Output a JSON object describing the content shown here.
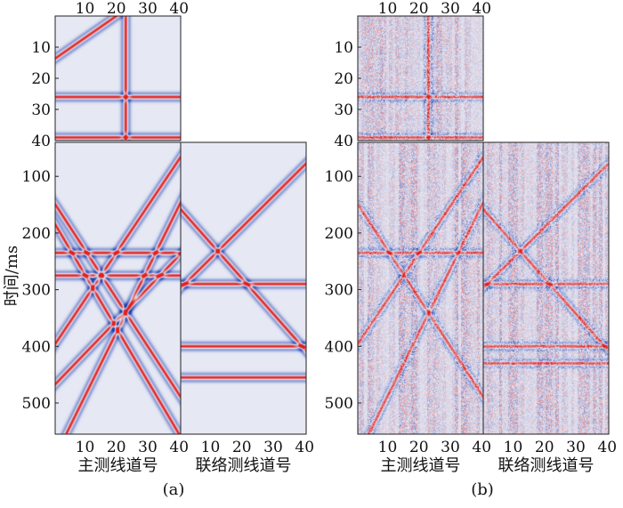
{
  "chart_data": {
    "type": "heatmap",
    "colormap": {
      "negative": "#1f3fb0",
      "zero": "#e6e9f4",
      "positive": "#e02020"
    },
    "panels": [
      {
        "name": "(a)",
        "caption": "(a)",
        "ylabel": "时间/ms",
        "main_xlabel": "主测线道号",
        "cross_xlabel": "联络测线道号",
        "x_range": [
          1,
          40
        ],
        "x_ticks": [
          10,
          20,
          30,
          40
        ],
        "top_y_range": [
          0,
          40
        ],
        "top_y_ticks": [
          10,
          20,
          30,
          40
        ],
        "main_y_range": [
          40,
          555
        ],
        "main_y_ticks": [
          100,
          200,
          300,
          400,
          500
        ],
        "noise": 0,
        "events": {
          "top": [
            {
              "kind": "line",
              "points": [
                [
                  0,
                  14
                ],
                [
                  20,
                  0
                ]
              ]
            },
            {
              "kind": "horizontal",
              "y": 26
            },
            {
              "kind": "horizontal",
              "y": 39
            },
            {
              "kind": "vertical",
              "x": 23
            }
          ],
          "main": [
            {
              "kind": "horizontal",
              "y": 235
            },
            {
              "kind": "horizontal",
              "y": 275
            },
            {
              "kind": "line",
              "points": [
                [
                  0,
                  145
                ],
                [
                  40,
                  485
                ]
              ]
            },
            {
              "kind": "line",
              "points": [
                [
                  0,
                  180
                ],
                [
                  40,
                  555
                ]
              ]
            },
            {
              "kind": "line",
              "points": [
                [
                  0,
                  400
                ],
                [
                  40,
                  70
                ]
              ]
            },
            {
              "kind": "line",
              "points": [
                [
                  0,
                  470
                ],
                [
                  40,
                  240
                ]
              ]
            },
            {
              "kind": "line",
              "points": [
                [
                  4,
                  555
                ],
                [
                  33,
                  230
                ]
              ]
            }
          ],
          "cross": [
            {
              "kind": "horizontal",
              "y": 290
            },
            {
              "kind": "horizontal",
              "y": 400
            },
            {
              "kind": "horizontal",
              "y": 455
            },
            {
              "kind": "line",
              "points": [
                [
                  0,
                  300
                ],
                [
                  40,
                  80
                ]
              ]
            },
            {
              "kind": "line",
              "points": [
                [
                  0,
                  155
                ],
                [
                  40,
                  405
                ]
              ]
            }
          ]
        }
      },
      {
        "name": "(b)",
        "caption": "(b)",
        "ylabel": "",
        "main_xlabel": "主测线道号",
        "cross_xlabel": "联络测线道号",
        "x_range": [
          1,
          40
        ],
        "x_ticks": [
          10,
          20,
          30,
          40
        ],
        "top_y_range": [
          0,
          40
        ],
        "top_y_ticks": [
          10,
          20,
          30,
          40
        ],
        "main_y_range": [
          40,
          555
        ],
        "main_y_ticks": [
          100,
          200,
          300,
          400,
          500
        ],
        "noise": 1,
        "events": {
          "top": [
            {
              "kind": "horizontal",
              "y": 26
            },
            {
              "kind": "horizontal",
              "y": 39
            },
            {
              "kind": "vertical",
              "x": 23
            }
          ],
          "main": [
            {
              "kind": "horizontal",
              "y": 235
            },
            {
              "kind": "line",
              "points": [
                [
                  0,
                  145
                ],
                [
                  40,
                  485
                ]
              ]
            },
            {
              "kind": "line",
              "points": [
                [
                  0,
                  400
                ],
                [
                  40,
                  70
                ]
              ]
            },
            {
              "kind": "line",
              "points": [
                [
                  4,
                  555
                ],
                [
                  33,
                  230
                ]
              ]
            }
          ],
          "cross": [
            {
              "kind": "horizontal",
              "y": 290
            },
            {
              "kind": "horizontal",
              "y": 400
            },
            {
              "kind": "horizontal",
              "y": 430
            },
            {
              "kind": "line",
              "points": [
                [
                  0,
                  300
                ],
                [
                  40,
                  80
                ]
              ]
            },
            {
              "kind": "line",
              "points": [
                [
                  0,
                  155
                ],
                [
                  40,
                  405
                ]
              ]
            }
          ]
        }
      }
    ]
  }
}
